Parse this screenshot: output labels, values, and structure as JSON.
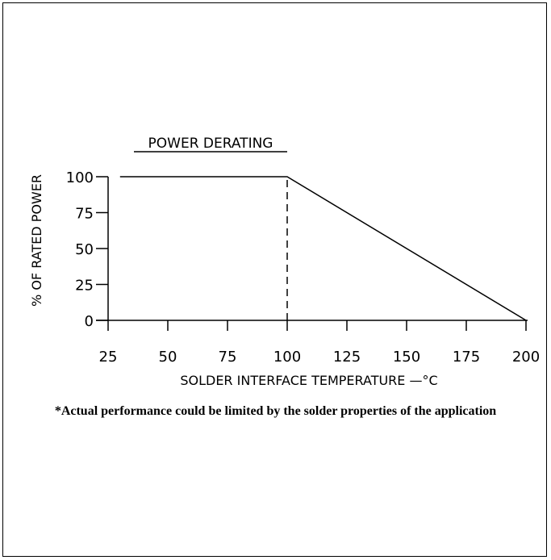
{
  "chart_data": {
    "type": "line",
    "title": "POWER DERATING",
    "xlabel": "SOLDER INTERFACE TEMPERATURE —°C",
    "ylabel": "% OF RATED POWER",
    "xlim": [
      25,
      200
    ],
    "ylim": [
      0,
      100
    ],
    "x_ticks": [
      25,
      50,
      75,
      100,
      125,
      150,
      175,
      200
    ],
    "y_ticks": [
      0,
      25,
      50,
      75,
      100
    ],
    "x_tick_labels": [
      "25",
      "50",
      "75",
      "100",
      "125",
      "150",
      "175",
      "200"
    ],
    "y_tick_labels": [
      "0",
      "25",
      "50",
      "75",
      "100"
    ],
    "series": [
      {
        "x": [
          30,
          100,
          200
        ],
        "y": [
          100,
          100,
          0
        ],
        "color": "#000000"
      }
    ],
    "reference_lines": [
      {
        "orientation": "vertical",
        "x": 100,
        "y_from": 0,
        "y_to": 100,
        "style": "dashed"
      }
    ],
    "grid": false,
    "legend": "none"
  },
  "footnote": "*Actual performance could be limited by the solder properties of the application"
}
